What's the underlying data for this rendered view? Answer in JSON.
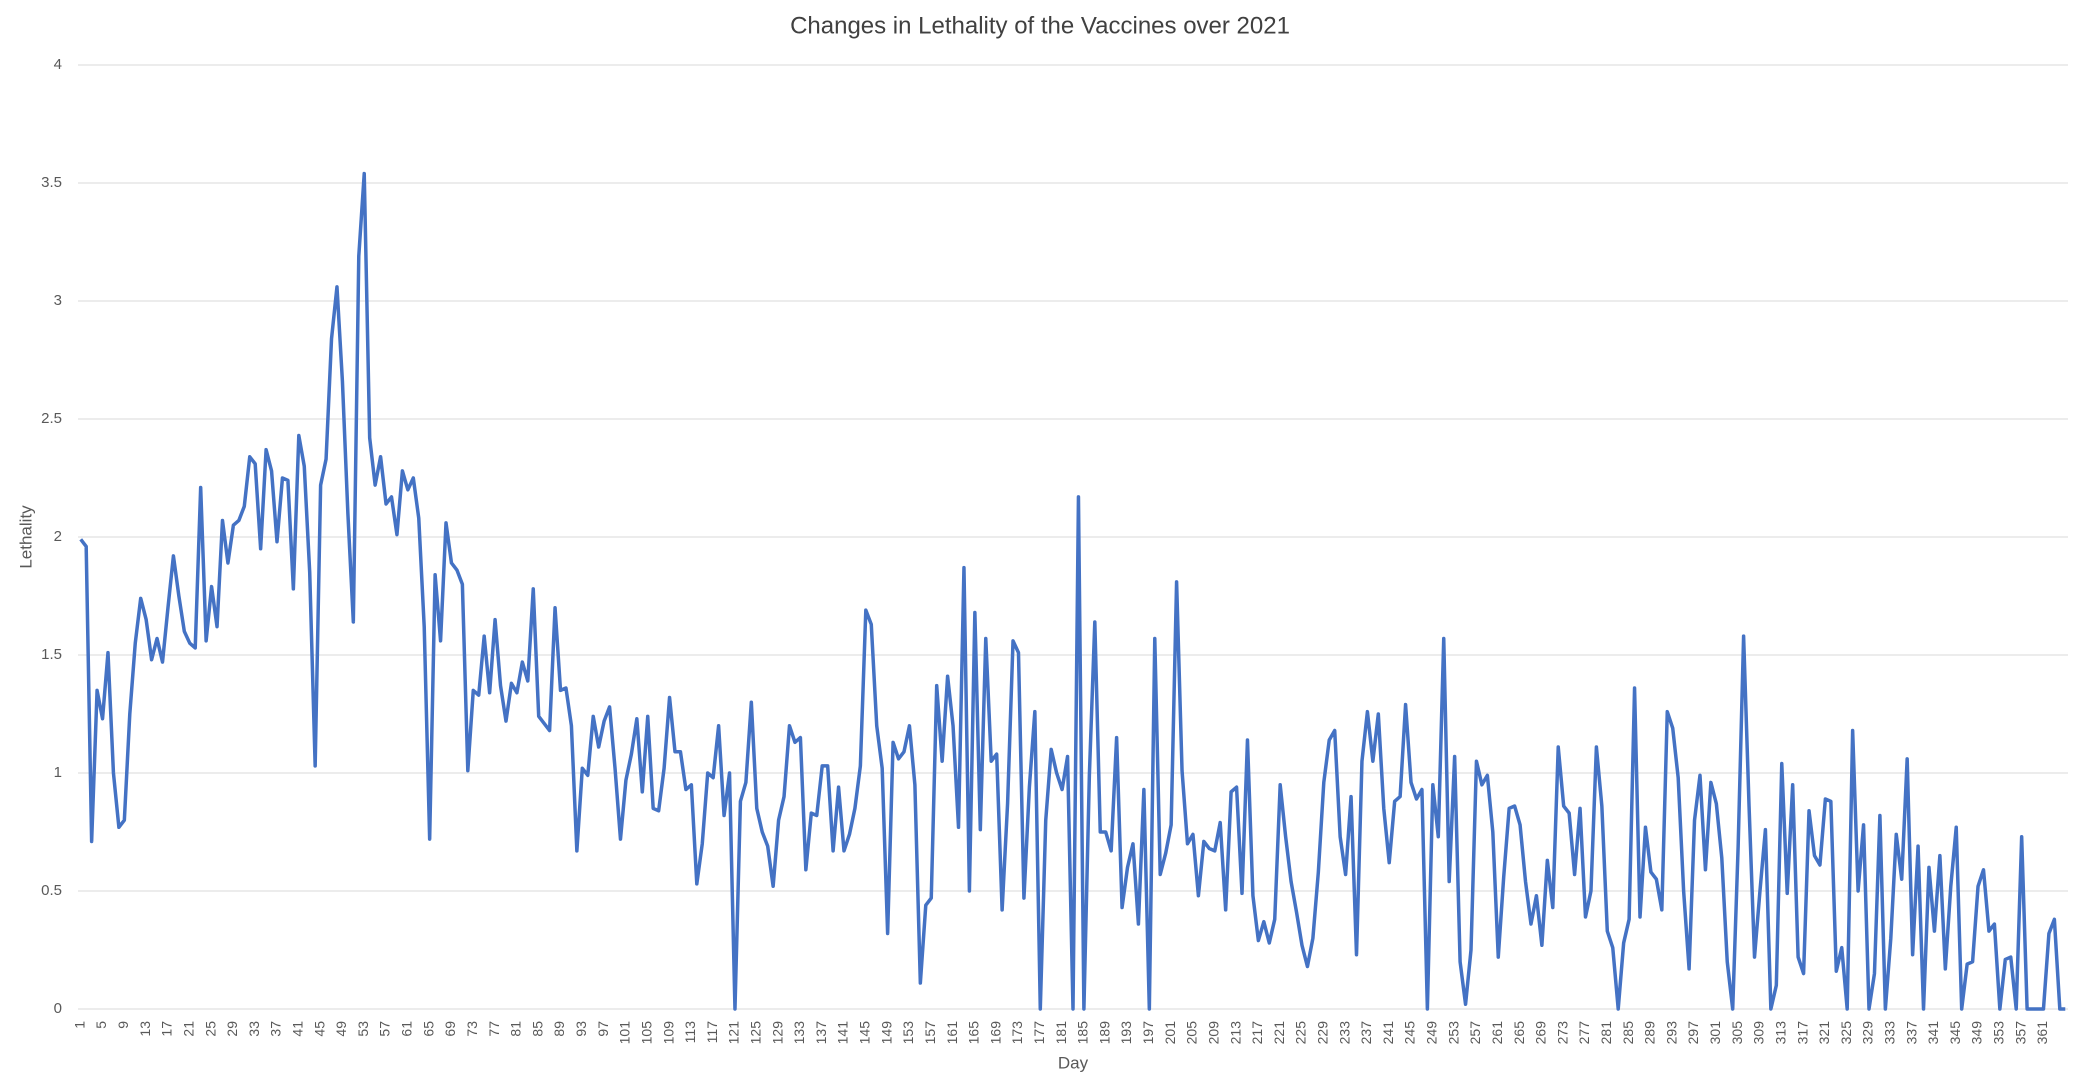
{
  "chart_data": {
    "type": "line",
    "title": "Changes in Lethality of the Vaccines over 2021",
    "x_label": "Day",
    "y_label": "Lethality",
    "categories": [
      1,
      null,
      null,
      null,
      5,
      null,
      null,
      null,
      9,
      null,
      null,
      null,
      13,
      null,
      null,
      null,
      17,
      null,
      null,
      null,
      21,
      null,
      null,
      null,
      25,
      null,
      null,
      null,
      29,
      null,
      null,
      null,
      33,
      null,
      null,
      null,
      37,
      null,
      null,
      null,
      41,
      null,
      null,
      null,
      45,
      null,
      null,
      null,
      49,
      null,
      null,
      null,
      53,
      null,
      null,
      null,
      57,
      null,
      null,
      null,
      61,
      null,
      null,
      null,
      65,
      null,
      null,
      null,
      69,
      null,
      null,
      null,
      73,
      null,
      null,
      null,
      77,
      null,
      null,
      null,
      81,
      null,
      null,
      null,
      85,
      null,
      null,
      null,
      89,
      null,
      null,
      null,
      93,
      null,
      null,
      null,
      97,
      null,
      null,
      null,
      101,
      null,
      null,
      null,
      105,
      null,
      null,
      null,
      109,
      null,
      null,
      null,
      113,
      null,
      null,
      null,
      117,
      null,
      null,
      null,
      121,
      null,
      null,
      null,
      125,
      null,
      null,
      null,
      129,
      null,
      null,
      null,
      133,
      null,
      null,
      null,
      137,
      null,
      null,
      null,
      141,
      null,
      null,
      null,
      145,
      null,
      null,
      null,
      149,
      null,
      null,
      null,
      153,
      null,
      null,
      null,
      157,
      null,
      null,
      null,
      161,
      null,
      null,
      null,
      165,
      null,
      null,
      null,
      169,
      null,
      null,
      null,
      173,
      null,
      null,
      null,
      177,
      null,
      null,
      null,
      181,
      null,
      null,
      null,
      185,
      null,
      null,
      null,
      189,
      null,
      null,
      null,
      193,
      null,
      null,
      null,
      197,
      null,
      null,
      null,
      201,
      null,
      null,
      null,
      205,
      null,
      null,
      null,
      209,
      null,
      null,
      null,
      213,
      null,
      null,
      null,
      217,
      null,
      null,
      null,
      221,
      null,
      null,
      null,
      225,
      null,
      null,
      null,
      229,
      null,
      null,
      null,
      233,
      null,
      null,
      null,
      237,
      null,
      null,
      null,
      241,
      null,
      null,
      null,
      245,
      null,
      null,
      null,
      249,
      null,
      null,
      null,
      253,
      null,
      null,
      null,
      257,
      null,
      null,
      null,
      261,
      null,
      null,
      null,
      265,
      null,
      null,
      null,
      269,
      null,
      null,
      null,
      273,
      null,
      null,
      null,
      277,
      null,
      null,
      null,
      281,
      null,
      null,
      null,
      285,
      null,
      null,
      null,
      289,
      null,
      null,
      null,
      293,
      null,
      null,
      null,
      297,
      null,
      null,
      null,
      301,
      null,
      null,
      null,
      305,
      null,
      null,
      null,
      309,
      null,
      null,
      null,
      313,
      null,
      null,
      null,
      317,
      null,
      null,
      null,
      321,
      null,
      null,
      null,
      325,
      null,
      null,
      null,
      329,
      null,
      null,
      null,
      333,
      null,
      null,
      null,
      337,
      null,
      null,
      null,
      341,
      null,
      null,
      null,
      345,
      null,
      null,
      null,
      349,
      null,
      null,
      null,
      353,
      null,
      null,
      null,
      357,
      null,
      null,
      null,
      361,
      null,
      null,
      null,
      null
    ],
    "series": [
      {
        "color": "#4472c4",
        "values": [
          1.99,
          1.96,
          0.71,
          1.35,
          1.23,
          1.51,
          1.0,
          0.77,
          0.8,
          1.25,
          1.55,
          1.74,
          1.65,
          1.48,
          1.57,
          1.47,
          1.7,
          1.92,
          1.75,
          1.6,
          1.55,
          1.53,
          2.21,
          1.56,
          1.79,
          1.62,
          2.07,
          1.89,
          2.05,
          2.07,
          2.13,
          2.34,
          2.31,
          1.95,
          2.37,
          2.28,
          1.98,
          2.25,
          2.24,
          1.78,
          2.43,
          2.3,
          1.85,
          1.03,
          2.22,
          2.33,
          2.84,
          3.06,
          2.66,
          2.1,
          1.64,
          3.19,
          3.54,
          2.42,
          2.22,
          2.34,
          2.14,
          2.17,
          2.01,
          2.28,
          2.2,
          2.25,
          2.08,
          1.62,
          0.72,
          1.84,
          1.56,
          2.06,
          1.89,
          1.86,
          1.8,
          1.01,
          1.35,
          1.33,
          1.58,
          1.34,
          1.65,
          1.37,
          1.22,
          1.38,
          1.34,
          1.47,
          1.39,
          1.78,
          1.24,
          1.21,
          1.18,
          1.7,
          1.35,
          1.36,
          1.2,
          0.67,
          1.02,
          0.99,
          1.24,
          1.11,
          1.22,
          1.28,
          1.02,
          0.72,
          0.97,
          1.08,
          1.23,
          0.92,
          1.24,
          0.85,
          0.84,
          1.02,
          1.32,
          1.09,
          1.09,
          0.93,
          0.95,
          0.53,
          0.7,
          1.0,
          0.98,
          1.2,
          0.82,
          1.0,
          0.0,
          0.88,
          0.96,
          1.3,
          0.85,
          0.75,
          0.69,
          0.52,
          0.8,
          0.9,
          1.2,
          1.13,
          1.15,
          0.59,
          0.83,
          0.82,
          1.03,
          1.03,
          0.67,
          0.94,
          0.67,
          0.74,
          0.85,
          1.03,
          1.69,
          1.63,
          1.2,
          1.02,
          0.32,
          1.13,
          1.06,
          1.09,
          1.2,
          0.95,
          0.11,
          0.44,
          0.47,
          1.37,
          1.05,
          1.41,
          1.2,
          0.77,
          1.87,
          0.5,
          1.68,
          0.76,
          1.57,
          1.05,
          1.08,
          0.42,
          0.87,
          1.56,
          1.51,
          0.47,
          0.94,
          1.26,
          0.0,
          0.8,
          1.1,
          1.0,
          0.93,
          1.07,
          0.0,
          2.17,
          0.0,
          0.99,
          1.64,
          0.75,
          0.75,
          0.67,
          1.15,
          0.43,
          0.6,
          0.7,
          0.36,
          0.93,
          0.0,
          1.57,
          0.57,
          0.66,
          0.78,
          1.81,
          1.01,
          0.7,
          0.74,
          0.48,
          0.71,
          0.68,
          0.67,
          0.79,
          0.42,
          0.92,
          0.94,
          0.49,
          1.14,
          0.48,
          0.29,
          0.37,
          0.28,
          0.38,
          0.95,
          0.73,
          0.54,
          0.41,
          0.27,
          0.18,
          0.3,
          0.58,
          0.96,
          1.14,
          1.18,
          0.73,
          0.57,
          0.9,
          0.23,
          1.05,
          1.26,
          1.05,
          1.25,
          0.85,
          0.62,
          0.88,
          0.9,
          1.29,
          0.96,
          0.89,
          0.93,
          0.0,
          0.95,
          0.73,
          1.57,
          0.54,
          1.07,
          0.2,
          0.02,
          0.25,
          1.05,
          0.95,
          0.99,
          0.75,
          0.22,
          0.56,
          0.85,
          0.86,
          0.78,
          0.54,
          0.36,
          0.48,
          0.27,
          0.63,
          0.43,
          1.11,
          0.86,
          0.83,
          0.57,
          0.85,
          0.39,
          0.5,
          1.11,
          0.86,
          0.33,
          0.26,
          0.0,
          0.28,
          0.38,
          1.36,
          0.39,
          0.77,
          0.58,
          0.55,
          0.42,
          1.26,
          1.19,
          0.98,
          0.5,
          0.17,
          0.8,
          0.99,
          0.59,
          0.96,
          0.87,
          0.64,
          0.2,
          0.0,
          0.69,
          1.58,
          0.86,
          0.22,
          0.5,
          0.76,
          0.0,
          0.1,
          1.04,
          0.49,
          0.95,
          0.22,
          0.15,
          0.84,
          0.65,
          0.61,
          0.89,
          0.88,
          0.16,
          0.26,
          0.0,
          1.18,
          0.5,
          0.78,
          0.0,
          0.15,
          0.82,
          0.0,
          0.3,
          0.74,
          0.55,
          1.06,
          0.23,
          0.69,
          0.0,
          0.6,
          0.33,
          0.65,
          0.17,
          0.52,
          0.77,
          0.0,
          0.19,
          0.2,
          0.52,
          0.59,
          0.33,
          0.36,
          0.0,
          0.21,
          0.22,
          0.0,
          0.73,
          0.0,
          0.0,
          0.0,
          0.0,
          0.32,
          0.38,
          0.0,
          0.0
        ]
      }
    ],
    "ylim": [
      0,
      4
    ],
    "yticks": [
      0,
      0.5,
      1,
      1.5,
      2,
      2.5,
      3,
      3.5,
      4
    ],
    "grid": true
  }
}
